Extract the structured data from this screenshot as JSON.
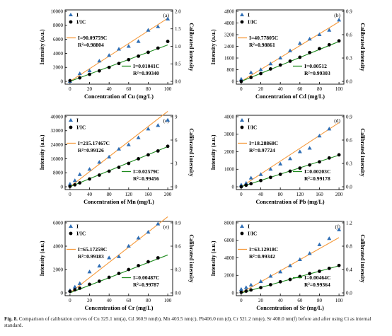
{
  "caption": {
    "label": "Fig. 8.",
    "text": "Comparison of calibration curves of Cu 325.1 nm(a), Cd 360.9 nm(b), Mn 403.5 nm(c), Pb406.0 nm (d), Cr 521.2 nm(e), Sr 408.0 nm(f) before and after using Ci as internal standard."
  },
  "colors": {
    "raw": "#2e6db4",
    "calibrated": "#000000",
    "raw_fit": "#f59a3c",
    "cal_fit": "#1f8a1f"
  },
  "chart_data": [
    {
      "type": "scatter",
      "panel": "(a)",
      "xlabel": "Concentration of Cu (mg/L)",
      "ylabel": "Intensity (a.u.)",
      "y2label": "Calibrated intensity",
      "xlim": [
        0,
        100
      ],
      "xticks": [
        0,
        20,
        40,
        60,
        80,
        100
      ],
      "ylim": [
        0,
        10000
      ],
      "yticks": [
        0,
        2000,
        4000,
        6000,
        8000,
        10000
      ],
      "y2lim": [
        0,
        2.0
      ],
      "y2ticks": [
        "0.0",
        "0.5",
        "1.0",
        "1.5",
        "2.0"
      ],
      "legend": [
        "I",
        "I/IC"
      ],
      "raw_eq": "I=90.09759C",
      "raw_r2": "R²=0.98804",
      "cal_eq": "I=0.01041C",
      "cal_r2": "R²=0.99340",
      "series": [
        {
          "name": "I",
          "x": [
            0,
            10,
            20,
            30,
            40,
            50,
            60,
            70,
            80,
            90,
            100
          ],
          "y": [
            0,
            1100,
            1500,
            2900,
            3700,
            4600,
            5000,
            5700,
            7300,
            7800,
            8900
          ],
          "slope": 90.09759
        },
        {
          "name": "I/IC",
          "x": [
            0,
            10,
            20,
            30,
            40,
            50,
            60,
            70,
            80,
            90,
            100
          ],
          "y": [
            0.02,
            0.1,
            0.2,
            0.3,
            0.4,
            0.51,
            0.62,
            0.72,
            0.83,
            0.95,
            1.14
          ],
          "slope": 0.01041
        }
      ]
    },
    {
      "type": "scatter",
      "panel": "(b)",
      "xlabel": "Concentration of Cd (mg/L)",
      "ylabel": "Intensity (a.u.)",
      "y2label": "Calibrated intensity",
      "xlim": [
        0,
        100
      ],
      "xticks": [
        0,
        20,
        40,
        60,
        80,
        100
      ],
      "ylim": [
        0,
        4800
      ],
      "yticks": [
        0,
        800,
        1600,
        2400,
        3200,
        4000,
        4800
      ],
      "y2lim": [
        0,
        0.9
      ],
      "y2ticks": [
        "0.0",
        "0.3",
        "0.6",
        "0.9"
      ],
      "legend": [
        "I",
        "I/IC"
      ],
      "raw_eq": "I=40.77805C",
      "raw_r2": "R²=0.98861",
      "cal_eq": "I=0.00512",
      "cal_r2": "R²=0.99303",
      "series": [
        {
          "name": "I",
          "x": [
            0,
            10,
            20,
            30,
            40,
            50,
            60,
            70,
            80,
            90,
            100
          ],
          "y": [
            150,
            600,
            800,
            1200,
            1600,
            2100,
            2600,
            2900,
            3200,
            3500,
            4200
          ],
          "slope": 40.77805
        },
        {
          "name": "I/IC",
          "x": [
            0,
            10,
            20,
            30,
            40,
            50,
            60,
            70,
            80,
            90,
            100
          ],
          "y": [
            0.0,
            0.05,
            0.1,
            0.16,
            0.21,
            0.26,
            0.31,
            0.37,
            0.42,
            0.47,
            0.52
          ],
          "slope": 0.00512
        }
      ]
    },
    {
      "type": "scatter",
      "panel": "(c)",
      "xlabel": "Concentration of Mn (mg/L)",
      "ylabel": "Intensity (a.u.)",
      "y2label": "Calibrated intensity",
      "xlim": [
        0,
        200
      ],
      "xticks": [
        0,
        40,
        80,
        120,
        160,
        200
      ],
      "ylim": [
        0,
        40000
      ],
      "yticks": [
        0,
        8000,
        16000,
        24000,
        32000,
        40000
      ],
      "y2lim": [
        0,
        9
      ],
      "y2ticks": [
        "0",
        "3",
        "6",
        "9"
      ],
      "legend": [
        "I",
        "I/IC"
      ],
      "raw_eq": "I=215.17467C",
      "raw_r2": "R²=0.99126",
      "cal_eq": "I=0.02579C",
      "cal_r2": "R²=0.99456",
      "series": [
        {
          "name": "I",
          "x": [
            0,
            10,
            20,
            40,
            60,
            80,
            100,
            120,
            140,
            160,
            180,
            200
          ],
          "y": [
            1500,
            3500,
            7000,
            10000,
            14000,
            17000,
            21500,
            24000,
            28000,
            33000,
            35000,
            38000
          ],
          "slope": 215.17467
        },
        {
          "name": "I/IC",
          "x": [
            0,
            10,
            20,
            40,
            60,
            80,
            100,
            120,
            140,
            160,
            180,
            200
          ],
          "y": [
            0.05,
            0.25,
            0.5,
            1.0,
            1.5,
            2.0,
            2.5,
            3.0,
            3.6,
            4.1,
            4.6,
            5.2
          ],
          "slope": 0.02579
        }
      ]
    },
    {
      "type": "scatter",
      "panel": "(d)",
      "xlabel": "Concentration of Pb (mg/L)",
      "ylabel": "Intensity (a.u.)",
      "y2label": "Calibrated intensity",
      "xlim": [
        0,
        200
      ],
      "xticks": [
        0,
        40,
        80,
        120,
        160,
        200
      ],
      "ylim": [
        0,
        4000
      ],
      "yticks": [
        0,
        1000,
        2000,
        3000,
        4000
      ],
      "y2lim": [
        0,
        0.9
      ],
      "y2ticks": [
        "0.0",
        "0.3",
        "0.6",
        "0.9"
      ],
      "legend": [
        "I",
        "I/IC"
      ],
      "raw_eq": "I=18.28868C",
      "raw_r2": "R²=0.97724",
      "cal_eq": "I=0.00203C",
      "cal_r2": "R²=0.99178",
      "series": [
        {
          "name": "I",
          "x": [
            0,
            10,
            20,
            40,
            60,
            80,
            100,
            120,
            140,
            160,
            180
          ],
          "y": [
            100,
            200,
            500,
            700,
            1000,
            1300,
            1600,
            2000,
            2200,
            2900,
            3300
          ],
          "slope": 18.28868
        },
        {
          "name": "I/IC",
          "x": [
            0,
            10,
            20,
            40,
            60,
            80,
            100,
            120,
            140,
            160,
            180,
            200
          ],
          "y": [
            0.0,
            0.02,
            0.04,
            0.08,
            0.12,
            0.16,
            0.2,
            0.24,
            0.28,
            0.32,
            0.37,
            0.41
          ],
          "slope": 0.00203
        }
      ]
    },
    {
      "type": "scatter",
      "panel": "(e)",
      "xlabel": "Concentration of Cr (mg/L)",
      "ylabel": "Intensity (a.u.)",
      "y2label": "Calibrated intensity",
      "xlim": [
        0,
        100
      ],
      "xticks": [
        0,
        20,
        40,
        60,
        80,
        100
      ],
      "ylim": [
        0,
        6000
      ],
      "yticks": [
        0,
        2000,
        4000,
        6000
      ],
      "y2lim": [
        0,
        0.9
      ],
      "y2ticks": [
        "0.0",
        "0.3",
        "0.6",
        "0.9"
      ],
      "legend": [
        "I",
        "I/IC"
      ],
      "raw_eq": "I=65.17259C",
      "raw_r2": "R²=0.99183",
      "cal_eq": "I=0.00487C",
      "cal_r2": "R²=0.99787",
      "series": [
        {
          "name": "I",
          "x": [
            0,
            5,
            10,
            20,
            30,
            40,
            50,
            60,
            70,
            80,
            90
          ],
          "y": [
            200,
            500,
            800,
            1800,
            2300,
            3000,
            3100,
            4000,
            4700,
            5200,
            5900
          ],
          "slope": 65.17259
        },
        {
          "name": "I/IC",
          "x": [
            0,
            5,
            10,
            20,
            30,
            40,
            50,
            60,
            70,
            80,
            90
          ],
          "y": [
            0.02,
            0.04,
            0.06,
            0.11,
            0.15,
            0.2,
            0.25,
            0.3,
            0.35,
            0.4,
            0.45
          ],
          "slope": 0.00487
        }
      ]
    },
    {
      "type": "scatter",
      "panel": "(f)",
      "xlabel": "Concentration of Sr (mg/L)",
      "ylabel": "Intensity (a.u.)",
      "y2label": "Calibrated intensity",
      "xlim": [
        0,
        100
      ],
      "xticks": [
        0,
        20,
        40,
        60,
        80,
        100
      ],
      "ylim": [
        0,
        8000
      ],
      "yticks": [
        0,
        2000,
        4000,
        6000,
        8000
      ],
      "y2lim": [
        0,
        1.2
      ],
      "y2ticks": [
        "0.0",
        "0.4",
        "0.8",
        "1.2"
      ],
      "legend": [
        "I",
        "I/IC"
      ],
      "raw_eq": "I=63.12918C",
      "raw_r2": "R²=0.99342",
      "cal_eq": "I=0.00464C",
      "cal_r2": "R²=0.99364",
      "series": [
        {
          "name": "I",
          "x": [
            0,
            5,
            10,
            20,
            30,
            40,
            50,
            60,
            70,
            80,
            90,
            100
          ],
          "y": [
            400,
            600,
            900,
            1300,
            1900,
            2400,
            3100,
            3800,
            4500,
            5500,
            6200,
            7200
          ],
          "slope": 63.12918
        },
        {
          "name": "I/IC",
          "x": [
            0,
            5,
            10,
            20,
            30,
            40,
            50,
            60,
            70,
            80,
            90,
            100
          ],
          "y": [
            0.01,
            0.03,
            0.05,
            0.09,
            0.14,
            0.19,
            0.23,
            0.28,
            0.33,
            0.37,
            0.42,
            0.47
          ],
          "slope": 0.00464
        }
      ]
    }
  ]
}
